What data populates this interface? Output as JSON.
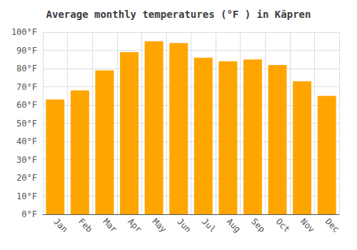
{
  "chart_data": {
    "type": "bar",
    "title": "Average monthly temperatures (°F ) in Kāpren",
    "categories": [
      "Jan",
      "Feb",
      "Mar",
      "Apr",
      "May",
      "Jun",
      "Jul",
      "Aug",
      "Sep",
      "Oct",
      "Nov",
      "Dec"
    ],
    "values": [
      63,
      68,
      79,
      89,
      95,
      94,
      86,
      84,
      85,
      82,
      73,
      65
    ],
    "color": "#FFA500",
    "ylim": [
      0,
      100
    ],
    "yticks": [
      {
        "value": 0,
        "label": "0°F"
      },
      {
        "value": 10,
        "label": "10°F"
      },
      {
        "value": 20,
        "label": "20°F"
      },
      {
        "value": 30,
        "label": "30°F"
      },
      {
        "value": 40,
        "label": "40°F"
      },
      {
        "value": 50,
        "label": "50°F"
      },
      {
        "value": 60,
        "label": "60°F"
      },
      {
        "value": 70,
        "label": "70°F"
      },
      {
        "value": 80,
        "label": "80°F"
      },
      {
        "value": 90,
        "label": "90°F"
      },
      {
        "value": 100,
        "label": "100°F"
      }
    ],
    "grid": true
  }
}
